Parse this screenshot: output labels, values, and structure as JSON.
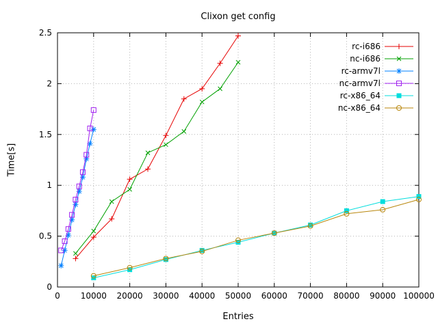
{
  "chart_data": {
    "type": "line",
    "title": "Clixon get config",
    "xlabel": "Entries",
    "ylabel": "Time[s]",
    "xlim": [
      0,
      100000
    ],
    "ylim": [
      0,
      2.5
    ],
    "xticks": [
      0,
      10000,
      20000,
      30000,
      40000,
      50000,
      60000,
      70000,
      80000,
      90000,
      100000
    ],
    "yticks": [
      0,
      0.5,
      1,
      1.5,
      2,
      2.5
    ],
    "grid": true,
    "legend_position": "top-right",
    "series": [
      {
        "name": "rc-i686",
        "color": "#e60000",
        "marker": "plus",
        "points": [
          [
            5000,
            0.28
          ],
          [
            10000,
            0.49
          ],
          [
            15000,
            0.67
          ],
          [
            20000,
            1.06
          ],
          [
            25000,
            1.16
          ],
          [
            30000,
            1.49
          ],
          [
            35000,
            1.85
          ],
          [
            40000,
            1.95
          ],
          [
            45000,
            2.2
          ],
          [
            50000,
            2.47
          ]
        ]
      },
      {
        "name": "nc-i686",
        "color": "#00a000",
        "marker": "cross",
        "points": [
          [
            5000,
            0.33
          ],
          [
            10000,
            0.55
          ],
          [
            15000,
            0.84
          ],
          [
            20000,
            0.96
          ],
          [
            25000,
            1.32
          ],
          [
            30000,
            1.4
          ],
          [
            35000,
            1.53
          ],
          [
            40000,
            1.82
          ],
          [
            45000,
            1.95
          ],
          [
            50000,
            2.21
          ]
        ]
      },
      {
        "name": "rc-armv7l",
        "color": "#0080ff",
        "marker": "asterisk",
        "points": [
          [
            1000,
            0.21
          ],
          [
            2000,
            0.36
          ],
          [
            3000,
            0.51
          ],
          [
            4000,
            0.66
          ],
          [
            5000,
            0.81
          ],
          [
            6000,
            0.94
          ],
          [
            7000,
            1.08
          ],
          [
            8000,
            1.26
          ],
          [
            9000,
            1.41
          ],
          [
            10000,
            1.55
          ]
        ]
      },
      {
        "name": "nc-armv7l",
        "color": "#a020f0",
        "marker": "square-open",
        "points": [
          [
            1000,
            0.36
          ],
          [
            2000,
            0.45
          ],
          [
            3000,
            0.57
          ],
          [
            4000,
            0.71
          ],
          [
            5000,
            0.86
          ],
          [
            6000,
            0.99
          ],
          [
            7000,
            1.13
          ],
          [
            8000,
            1.3
          ],
          [
            9000,
            1.56
          ],
          [
            10000,
            1.74
          ]
        ]
      },
      {
        "name": "rc-x86_64",
        "color": "#00dddd",
        "marker": "square-filled",
        "points": [
          [
            10000,
            0.09
          ],
          [
            20000,
            0.17
          ],
          [
            30000,
            0.27
          ],
          [
            40000,
            0.36
          ],
          [
            50000,
            0.44
          ],
          [
            60000,
            0.53
          ],
          [
            70000,
            0.61
          ],
          [
            80000,
            0.75
          ],
          [
            90000,
            0.84
          ],
          [
            100000,
            0.89
          ]
        ]
      },
      {
        "name": "nc-x86_64",
        "color": "#b8860b",
        "marker": "circle-open",
        "points": [
          [
            10000,
            0.11
          ],
          [
            20000,
            0.19
          ],
          [
            30000,
            0.28
          ],
          [
            40000,
            0.35
          ],
          [
            50000,
            0.46
          ],
          [
            60000,
            0.53
          ],
          [
            70000,
            0.6
          ],
          [
            80000,
            0.72
          ],
          [
            90000,
            0.76
          ],
          [
            100000,
            0.86
          ]
        ]
      }
    ]
  }
}
